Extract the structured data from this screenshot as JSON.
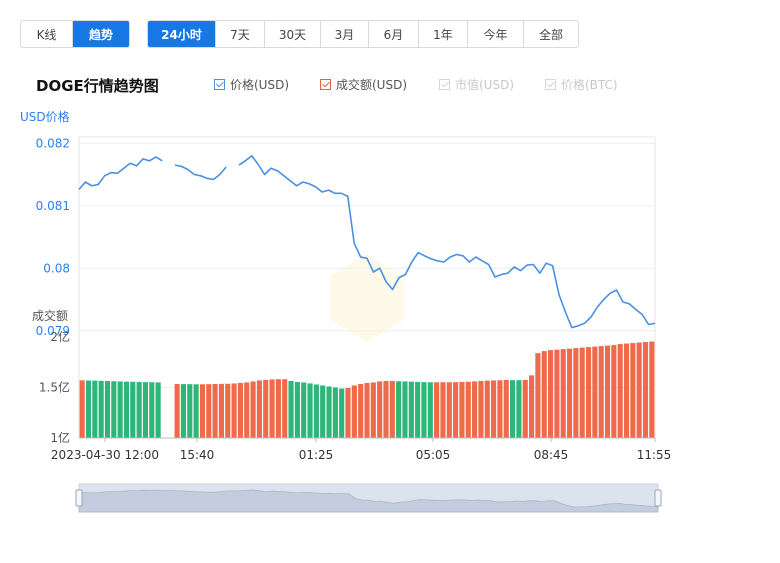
{
  "view_tabs": [
    {
      "label": "K线",
      "active": false
    },
    {
      "label": "趋势",
      "active": true
    }
  ],
  "range_tabs": [
    {
      "label": "24小时",
      "active": true
    },
    {
      "label": "7天",
      "active": false
    },
    {
      "label": "30天",
      "active": false
    },
    {
      "label": "3月",
      "active": false
    },
    {
      "label": "6月",
      "active": false
    },
    {
      "label": "1年",
      "active": false
    },
    {
      "label": "今年",
      "active": false
    },
    {
      "label": "全部",
      "active": false
    }
  ],
  "chart_title": "DOGE行情趋势图",
  "legend": [
    {
      "label": "价格(USD)",
      "checked": true,
      "color": "#4a90e2"
    },
    {
      "label": "成交额(USD)",
      "checked": true,
      "color": "#e8603c"
    },
    {
      "label": "市值(USD)",
      "checked": false,
      "color": "#cccccc"
    },
    {
      "label": "价格(BTC)",
      "checked": false,
      "color": "#cccccc"
    }
  ],
  "price_axis_label": "USD价格",
  "volume_axis_label": "成交额",
  "colors": {
    "price_line": "#4a90e2",
    "vol_up": "#ee6a4a",
    "vol_down": "#2db57a",
    "accent": "#1677e5"
  },
  "chart_data": {
    "type": "line",
    "title": "DOGE行情趋势图",
    "price_series": {
      "name": "价格(USD)",
      "ylim": [
        0.0789,
        0.0821
      ],
      "yticks": [
        "0.082",
        "0.081",
        "0.08",
        "0.079"
      ],
      "values": [
        0.08126,
        0.08138,
        0.08132,
        0.08134,
        0.08148,
        0.08153,
        0.08152,
        0.0816,
        0.08168,
        0.08164,
        0.08175,
        0.08172,
        0.08178,
        0.08172,
        null,
        0.08165,
        0.08163,
        0.08158,
        0.0815,
        0.08148,
        0.08144,
        0.08142,
        0.0815,
        0.08162,
        null,
        0.08165,
        0.08172,
        0.0818,
        0.08166,
        0.0815,
        0.0816,
        0.08156,
        0.08148,
        0.0814,
        0.08132,
        0.08138,
        0.08135,
        0.0813,
        0.08122,
        0.08125,
        0.0812,
        0.0812,
        0.08115,
        0.0804,
        0.08018,
        0.08016,
        0.07994,
        0.08,
        0.07978,
        0.07966,
        0.07985,
        0.0799,
        0.0801,
        0.08025,
        0.0802,
        0.08015,
        0.08012,
        0.0801,
        0.08018,
        0.08022,
        0.0802,
        0.0801,
        0.08018,
        0.08012,
        0.08006,
        0.07986,
        0.0799,
        0.07992,
        0.08002,
        0.07996,
        0.08005,
        0.08006,
        0.07992,
        0.08008,
        0.08004,
        0.07958,
        0.0793,
        0.07905,
        0.07908,
        0.07912,
        0.07922,
        0.07938,
        0.0795,
        0.0796,
        0.07965,
        0.07946,
        0.07943,
        0.07934,
        0.07926,
        0.0791,
        0.07912
      ]
    },
    "volume_series": {
      "name": "成交额(USD)",
      "ylim": [
        1.0,
        2.0
      ],
      "yticks": [
        "2亿",
        "1.5亿",
        "1亿"
      ],
      "values": [
        1.571,
        1.569,
        1.568,
        1.566,
        1.565,
        1.562,
        1.56,
        1.558,
        1.557,
        1.555,
        1.553,
        1.552,
        1.55,
        null,
        null,
        1.535,
        1.534,
        1.533,
        1.532,
        1.532,
        1.533,
        1.535,
        1.536,
        1.537,
        1.54,
        1.545,
        1.55,
        1.56,
        1.57,
        1.575,
        1.58,
        1.582,
        1.582,
        1.565,
        1.555,
        1.55,
        1.54,
        1.53,
        1.52,
        1.51,
        1.5,
        1.49,
        1.495,
        1.52,
        1.535,
        1.545,
        1.55,
        1.56,
        1.565,
        1.565,
        1.562,
        1.56,
        1.558,
        1.555,
        1.553,
        1.552,
        1.552,
        1.552,
        1.552,
        1.553,
        1.555,
        1.557,
        1.56,
        1.565,
        1.568,
        1.57,
        1.572,
        1.575,
        1.573,
        1.572,
        1.575,
        1.62,
        1.84,
        1.86,
        1.87,
        1.875,
        1.88,
        1.885,
        1.89,
        1.895,
        1.9,
        1.905,
        1.91,
        1.915,
        1.92,
        1.93,
        1.935,
        1.94,
        1.945,
        1.95,
        1.955
      ]
    },
    "x_tick_labels": [
      "2023-04-30 12:00",
      "15:40",
      "01:25",
      "05:05",
      "08:45",
      "11:55"
    ]
  }
}
